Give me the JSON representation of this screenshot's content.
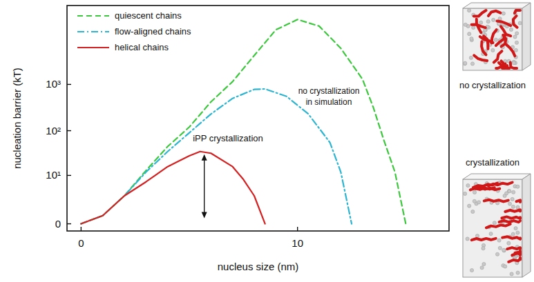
{
  "chart_data": {
    "type": "line",
    "x_label": "nucleus size (nm)",
    "y_label": "nucleation barrier (kT)",
    "xlim": [
      -0.65,
      17
    ],
    "xticks": [
      0,
      10
    ],
    "ylim": [
      -0.3,
      50000
    ],
    "yticks": [
      0,
      {
        "value": 10,
        "label": "10¹"
      },
      {
        "value": 100,
        "label": "10²"
      },
      {
        "value": 1000,
        "label": "10³"
      }
    ],
    "log": "y",
    "legend": "top-left",
    "series": [
      {
        "name": "quiescent chains",
        "color": "#3cc83c",
        "line_style": "dashed",
        "x": [
          0,
          1,
          2,
          3,
          4,
          5,
          6,
          7,
          8,
          9,
          10,
          11,
          12,
          13,
          13.5,
          14,
          14.5,
          15
        ],
        "values": [
          0,
          0.5,
          3,
          13,
          45,
          120,
          420,
          1150,
          4200,
          15000,
          25000,
          18000,
          6000,
          1300,
          320,
          60,
          12,
          0
        ]
      },
      {
        "name": "flow-aligned chains",
        "color": "#2bb5d0",
        "line_style": "dashdot",
        "x": [
          0,
          1,
          2,
          3,
          4,
          5,
          6,
          7,
          8,
          8.5,
          9.5,
          10.5,
          11.5,
          12,
          12.5
        ],
        "values": [
          0,
          0.5,
          3,
          12,
          35,
          90,
          230,
          500,
          780,
          800,
          550,
          230,
          55,
          12,
          0
        ]
      },
      {
        "name": "helical chains",
        "color": "#d42020",
        "line_style": "solid",
        "x": [
          0,
          1,
          2,
          3,
          4,
          5,
          5.5,
          6,
          7,
          7.5,
          8,
          8.5
        ],
        "values": [
          0,
          0.5,
          3,
          7,
          16,
          28,
          35,
          32,
          16,
          8,
          3,
          0
        ]
      }
    ],
    "annotations": [
      "iPP crystallization",
      "no crystallization",
      "in simulation"
    ],
    "insets": [
      "no crystallization",
      "crystallization"
    ]
  }
}
